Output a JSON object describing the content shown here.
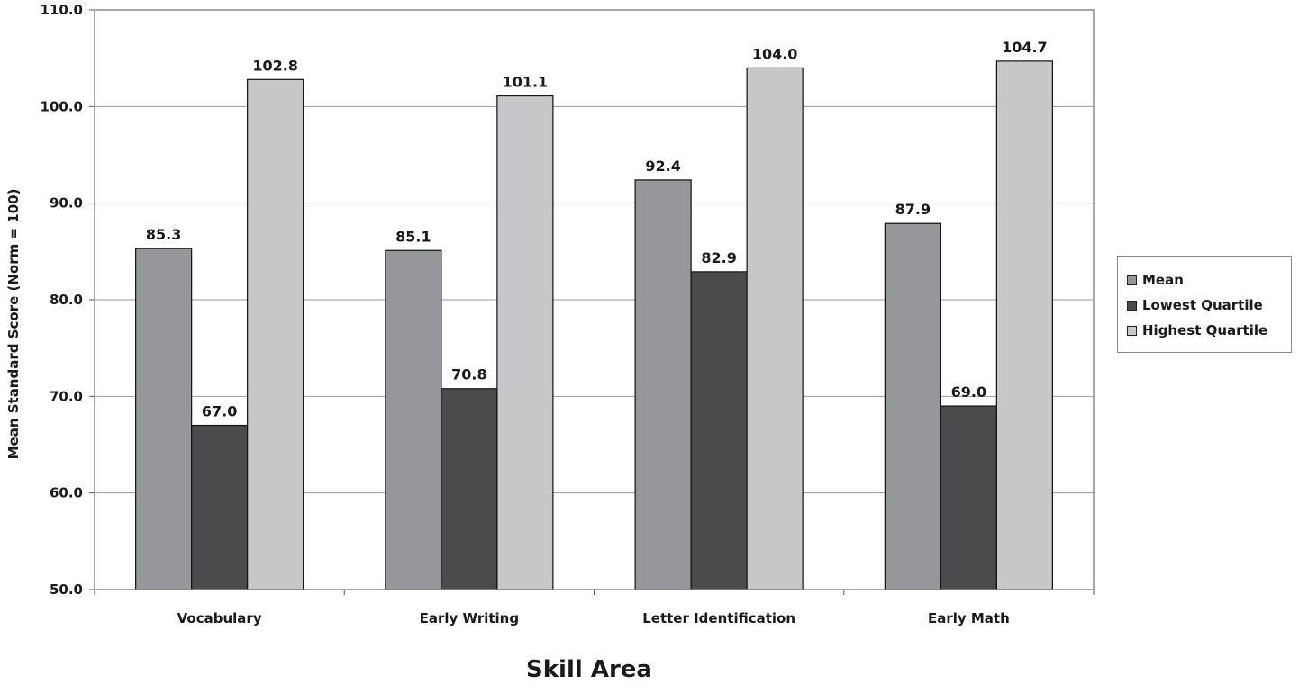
{
  "chart_data": {
    "type": "bar",
    "categories": [
      "Vocabulary",
      "Early Writing",
      "Letter Identification",
      "Early Math"
    ],
    "series": [
      {
        "name": "Mean",
        "color": "#96979b",
        "values": [
          85.3,
          85.1,
          92.4,
          87.9
        ],
        "labels": [
          "85.3",
          "85.1",
          "92.4",
          "87.9"
        ]
      },
      {
        "name": "Lowest Quartile",
        "color": "#4b4b4e",
        "values": [
          67.0,
          70.8,
          82.9,
          69.0
        ],
        "labels": [
          "67.0",
          "70.8",
          "82.9",
          "69.0"
        ]
      },
      {
        "name": "Highest Quartile",
        "color": "#c6c7c9",
        "values": [
          102.8,
          101.1,
          104.0,
          104.7
        ],
        "labels": [
          "102.8",
          "101.1",
          "104.0",
          "104.7"
        ]
      }
    ],
    "title": "",
    "xlabel": "Skill Area",
    "ylabel": "Mean Standard Score (Norm = 100)",
    "ylim": [
      50,
      110
    ],
    "yticks": [
      "50.0",
      "60.0",
      "70.0",
      "80.0",
      "90.0",
      "100.0",
      "110.0"
    ],
    "grid": true,
    "legend_position": "right"
  }
}
